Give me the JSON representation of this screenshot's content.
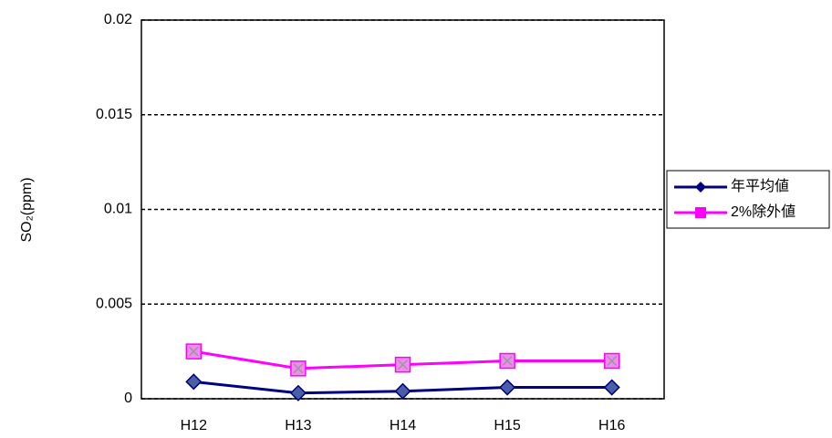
{
  "chart_data": {
    "type": "line",
    "y_label": "SO₂(ppm)",
    "categories": [
      "H12",
      "H13",
      "H14",
      "H15",
      "H16"
    ],
    "series": [
      {
        "name": "年平均値",
        "color": "#000080",
        "marker": "diamond",
        "values": [
          0.0009,
          0.0003,
          0.0004,
          0.0006,
          0.0006
        ]
      },
      {
        "name": "2%除外値",
        "color": "#ff00ff",
        "marker": "square",
        "values": [
          0.0025,
          0.0016,
          0.0018,
          0.002,
          0.002
        ]
      }
    ],
    "ylim": [
      0,
      0.02
    ],
    "yticks": [
      0,
      0.005,
      0.01,
      0.015,
      0.02
    ],
    "grid": true,
    "legend": "right"
  }
}
